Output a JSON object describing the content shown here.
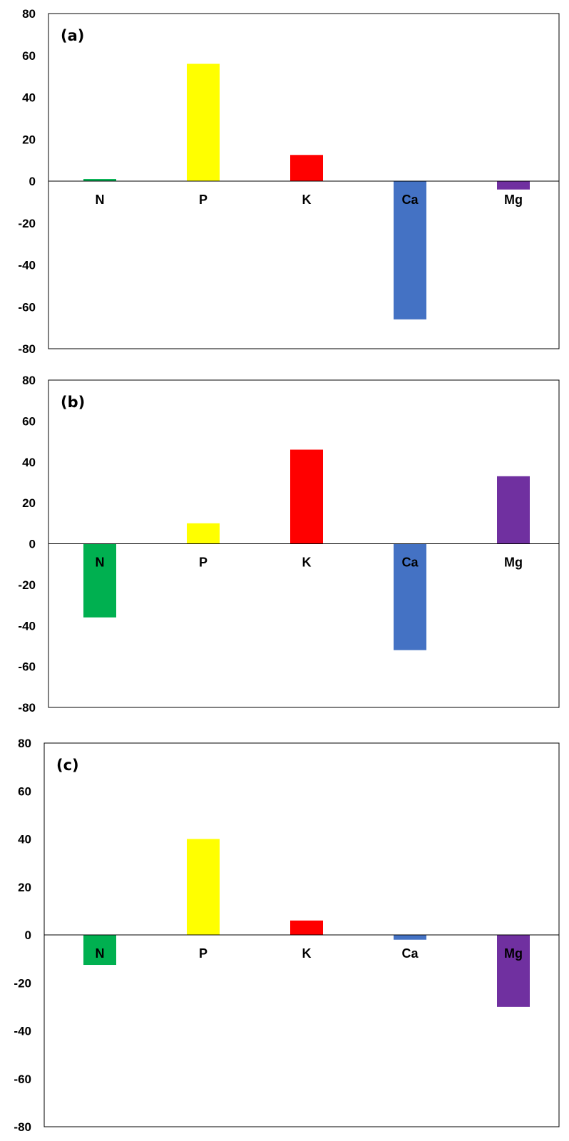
{
  "colors": {
    "N": "#00B050",
    "P": "#FFFF00",
    "K": "#FF0000",
    "Ca": "#4472C4",
    "Mg": "#7030A0"
  },
  "chart_data": [
    {
      "type": "bar",
      "panel_label": "(a)",
      "categories": [
        "N",
        "P",
        "K",
        "Ca",
        "Mg"
      ],
      "values": [
        1,
        56,
        12.5,
        -66,
        -4
      ],
      "ylim": [
        -80,
        80
      ],
      "yticks": [
        "80",
        "60",
        "40",
        "20",
        "0",
        "-20",
        "-40",
        "-60",
        "-80"
      ],
      "title": "",
      "xlabel": "",
      "ylabel": "",
      "grid": false,
      "legend": "none"
    },
    {
      "type": "bar",
      "panel_label": "(b)",
      "categories": [
        "N",
        "P",
        "K",
        "Ca",
        "Mg"
      ],
      "values": [
        -36,
        10,
        46,
        -52,
        33
      ],
      "ylim": [
        -80,
        80
      ],
      "yticks": [
        "80",
        "60",
        "40",
        "20",
        "0",
        "-20",
        "-40",
        "-60",
        "-80"
      ],
      "title": "",
      "xlabel": "",
      "ylabel": "",
      "grid": false,
      "legend": "none"
    },
    {
      "type": "bar",
      "panel_label": "(c)",
      "categories": [
        "N",
        "P",
        "K",
        "Ca",
        "Mg"
      ],
      "values": [
        -12.5,
        40,
        6,
        -2,
        -30
      ],
      "ylim": [
        -80,
        80
      ],
      "yticks": [
        "80",
        "60",
        "40",
        "20",
        "0",
        "-20",
        "-40",
        "-60",
        "-80"
      ],
      "title": "",
      "xlabel": "",
      "ylabel": "",
      "grid": false,
      "legend": "none"
    }
  ]
}
